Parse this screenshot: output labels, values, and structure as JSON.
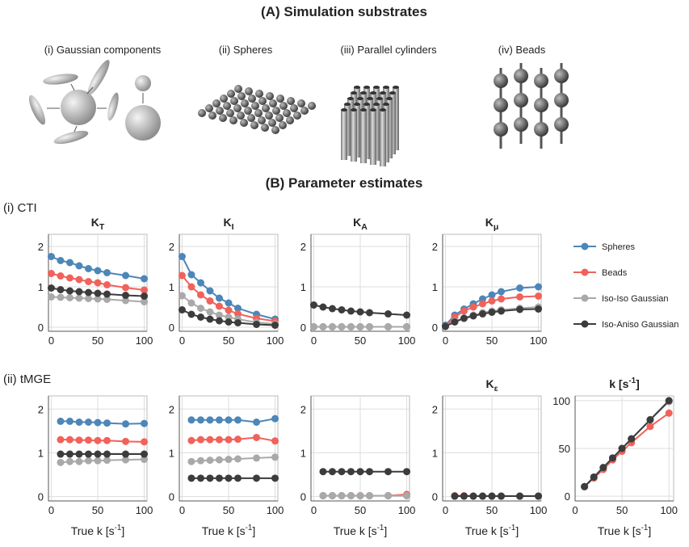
{
  "panel_a": {
    "title": "(A) Simulation substrates",
    "substrates": [
      "(i) Gaussian components",
      "(ii) Spheres",
      "(iii) Parallel cylinders",
      "(iv) Beads"
    ]
  },
  "panel_b": {
    "title": "(B) Parameter estimates",
    "rows": [
      "(i) CTI",
      "(ii) tMGE"
    ]
  },
  "legend": [
    {
      "name": "Spheres",
      "color": "#4d86b8"
    },
    {
      "name": "Beads",
      "color": "#f0625a"
    },
    {
      "name": "Iso-Iso Gaussian",
      "color": "#a9a9a9"
    },
    {
      "name": "Iso-Aniso Gaussian",
      "color": "#3c3c3c"
    }
  ],
  "chart_data": [
    {
      "type": "line",
      "title": {
        "text": "K",
        "sub": "T"
      },
      "x": [
        0,
        10,
        20,
        30,
        40,
        50,
        60,
        80,
        100
      ],
      "xlim": [
        -3,
        103
      ],
      "ylim": [
        -0.1,
        2.3
      ],
      "xticks": [
        0,
        50,
        100
      ],
      "yticks": [
        0,
        1,
        2
      ],
      "grid": true,
      "series": [
        {
          "values": [
            1.75,
            1.65,
            1.6,
            1.52,
            1.45,
            1.4,
            1.35,
            1.28,
            1.2
          ]
        },
        {
          "values": [
            1.33,
            1.27,
            1.22,
            1.18,
            1.13,
            1.1,
            1.05,
            0.98,
            0.92
          ]
        },
        {
          "values": [
            0.75,
            0.74,
            0.73,
            0.72,
            0.71,
            0.7,
            0.69,
            0.66,
            0.63
          ]
        },
        {
          "values": [
            0.97,
            0.93,
            0.9,
            0.88,
            0.86,
            0.84,
            0.82,
            0.79,
            0.77
          ]
        }
      ]
    },
    {
      "type": "line",
      "title": {
        "text": "K",
        "sub": "I"
      },
      "x": [
        0,
        10,
        20,
        30,
        40,
        50,
        60,
        80,
        100
      ],
      "xlim": [
        -3,
        103
      ],
      "ylim": [
        -0.1,
        2.3
      ],
      "xticks": [
        0,
        50,
        100
      ],
      "yticks": [
        0,
        1,
        2
      ],
      "grid": true,
      "series": [
        {
          "values": [
            1.75,
            1.3,
            1.1,
            0.9,
            0.72,
            0.6,
            0.47,
            0.32,
            0.2
          ]
        },
        {
          "values": [
            1.28,
            1.0,
            0.8,
            0.65,
            0.52,
            0.42,
            0.33,
            0.22,
            0.15
          ]
        },
        {
          "values": [
            0.78,
            0.6,
            0.47,
            0.38,
            0.3,
            0.25,
            0.2,
            0.12,
            0.08
          ]
        },
        {
          "values": [
            0.43,
            0.32,
            0.25,
            0.2,
            0.16,
            0.13,
            0.11,
            0.07,
            0.05
          ]
        }
      ]
    },
    {
      "type": "line",
      "title": {
        "text": "K",
        "sub": "A"
      },
      "x": [
        0,
        10,
        20,
        30,
        40,
        50,
        60,
        80,
        100
      ],
      "xlim": [
        -3,
        103
      ],
      "ylim": [
        -0.1,
        2.3
      ],
      "xticks": [
        0,
        50,
        100
      ],
      "yticks": [
        0,
        1,
        2
      ],
      "grid": true,
      "series": [
        {
          "values": [
            0.01,
            0.01,
            0.01,
            0.01,
            0.01,
            0.01,
            0.01,
            0.01,
            0.01
          ]
        },
        {
          "values": [
            0.01,
            0.01,
            0.01,
            0.01,
            0.01,
            0.01,
            0.01,
            0.01,
            0.01
          ]
        },
        {
          "values": [
            0.01,
            0.01,
            0.01,
            0.01,
            0.01,
            0.01,
            0.01,
            0.01,
            0.01
          ]
        },
        {
          "values": [
            0.55,
            0.5,
            0.46,
            0.43,
            0.4,
            0.38,
            0.36,
            0.33,
            0.3
          ]
        }
      ]
    },
    {
      "type": "line",
      "title": {
        "text": "K",
        "sub": "μ"
      },
      "x": [
        0,
        10,
        20,
        30,
        40,
        50,
        60,
        80,
        100
      ],
      "xlim": [
        -3,
        103
      ],
      "ylim": [
        -0.1,
        2.3
      ],
      "xticks": [
        0,
        50,
        100
      ],
      "yticks": [
        0,
        1,
        2
      ],
      "grid": true,
      "series": [
        {
          "values": [
            0.05,
            0.3,
            0.45,
            0.58,
            0.7,
            0.8,
            0.88,
            0.97,
            1.0
          ]
        },
        {
          "values": [
            0.02,
            0.25,
            0.4,
            0.5,
            0.58,
            0.65,
            0.7,
            0.75,
            0.77
          ]
        },
        {
          "values": [
            0.02,
            0.15,
            0.23,
            0.3,
            0.36,
            0.4,
            0.43,
            0.47,
            0.5
          ]
        },
        {
          "values": [
            0.02,
            0.13,
            0.22,
            0.28,
            0.33,
            0.37,
            0.4,
            0.44,
            0.45
          ]
        }
      ]
    },
    {
      "type": "line",
      "x": [
        10,
        20,
        30,
        40,
        50,
        60,
        80,
        100
      ],
      "xlim": [
        -3,
        103
      ],
      "ylim": [
        -0.1,
        2.3
      ],
      "xticks": [
        0,
        50,
        100
      ],
      "yticks": [
        0,
        1,
        2
      ],
      "grid": true,
      "xlabel": {
        "text": "True k [s",
        "sup": "-1",
        "tail": "]"
      },
      "series": [
        {
          "values": [
            1.72,
            1.72,
            1.7,
            1.7,
            1.69,
            1.68,
            1.66,
            1.67
          ]
        },
        {
          "values": [
            1.3,
            1.3,
            1.29,
            1.29,
            1.28,
            1.28,
            1.26,
            1.25
          ]
        },
        {
          "values": [
            0.78,
            0.8,
            0.8,
            0.82,
            0.82,
            0.83,
            0.84,
            0.85
          ]
        },
        {
          "values": [
            0.97,
            0.97,
            0.97,
            0.97,
            0.97,
            0.97,
            0.97,
            0.97
          ]
        }
      ]
    },
    {
      "type": "line",
      "x": [
        10,
        20,
        30,
        40,
        50,
        60,
        80,
        100
      ],
      "xlim": [
        -3,
        103
      ],
      "ylim": [
        -0.1,
        2.3
      ],
      "xticks": [
        0,
        50,
        100
      ],
      "yticks": [
        0,
        1,
        2
      ],
      "grid": true,
      "xlabel": {
        "text": "True k [s",
        "sup": "-1",
        "tail": "]"
      },
      "series": [
        {
          "values": [
            1.75,
            1.75,
            1.75,
            1.75,
            1.75,
            1.75,
            1.7,
            1.78
          ]
        },
        {
          "values": [
            1.28,
            1.3,
            1.3,
            1.3,
            1.3,
            1.31,
            1.35,
            1.27
          ]
        },
        {
          "values": [
            0.8,
            0.82,
            0.83,
            0.84,
            0.85,
            0.86,
            0.88,
            0.9
          ]
        },
        {
          "values": [
            0.42,
            0.42,
            0.42,
            0.42,
            0.42,
            0.42,
            0.42,
            0.42
          ]
        }
      ]
    },
    {
      "type": "line",
      "x": [
        10,
        20,
        30,
        40,
        50,
        60,
        80,
        100
      ],
      "xlim": [
        -3,
        103
      ],
      "ylim": [
        -0.1,
        2.3
      ],
      "xticks": [
        0,
        50,
        100
      ],
      "yticks": [
        0,
        1,
        2
      ],
      "grid": true,
      "xlabel": {
        "text": "True k [s",
        "sup": "-1",
        "tail": "]"
      },
      "series": [
        {
          "values": [
            0.02,
            0.02,
            0.02,
            0.02,
            0.02,
            0.02,
            0.02,
            0.02
          ]
        },
        {
          "values": [
            0.02,
            0.02,
            0.02,
            0.02,
            0.02,
            0.02,
            0.02,
            0.05
          ]
        },
        {
          "values": [
            0.02,
            0.02,
            0.02,
            0.02,
            0.02,
            0.02,
            0.02,
            0.02
          ]
        },
        {
          "values": [
            0.57,
            0.57,
            0.57,
            0.57,
            0.57,
            0.57,
            0.57,
            0.57
          ]
        }
      ]
    },
    {
      "type": "line",
      "title": {
        "text": "K",
        "sub": "ε"
      },
      "x": [
        10,
        20,
        30,
        40,
        50,
        60,
        80,
        100
      ],
      "xlim": [
        -3,
        103
      ],
      "ylim": [
        -0.1,
        2.3
      ],
      "xticks": [
        0,
        50,
        100
      ],
      "yticks": [
        0,
        1,
        2
      ],
      "grid": true,
      "xlabel": {
        "text": "True k [s",
        "sup": "-1",
        "tail": "]"
      },
      "series": [
        {
          "values": [
            0.01,
            0.01,
            0.01,
            0.01,
            0.01,
            0.01,
            0.01,
            0.01
          ]
        },
        {
          "values": [
            0.02,
            0.02,
            0.01,
            0.01,
            0.01,
            0.01,
            0.01,
            0.01
          ]
        },
        {
          "values": [
            0.01,
            0.01,
            0.01,
            0.01,
            0.01,
            0.01,
            0.01,
            0.01
          ]
        },
        {
          "values": [
            0.01,
            0.01,
            0.01,
            0.01,
            0.01,
            0.01,
            0.01,
            0.01
          ]
        }
      ]
    },
    {
      "type": "line",
      "title": {
        "text": "k [s",
        "sup": "-1",
        "tail": "]"
      },
      "x": [
        10,
        20,
        30,
        40,
        50,
        60,
        80,
        100
      ],
      "xlim": [
        0,
        105
      ],
      "ylim": [
        -5,
        105
      ],
      "xticks": [
        0,
        50,
        100
      ],
      "yticks": [
        0,
        50,
        100
      ],
      "grid": true,
      "xlabel": {
        "text": "True k [s",
        "sup": "-1",
        "tail": "]"
      },
      "series": [
        {
          "values": [
            10,
            20,
            30,
            40,
            50,
            60,
            80,
            100
          ]
        },
        {
          "values": [
            10,
            19,
            28,
            38,
            47,
            56,
            73,
            87
          ]
        },
        {
          "values": [
            10,
            20,
            30,
            40,
            50,
            60,
            80,
            99
          ]
        },
        {
          "values": [
            10,
            20,
            30,
            40,
            50,
            60,
            80,
            100
          ]
        }
      ]
    }
  ]
}
